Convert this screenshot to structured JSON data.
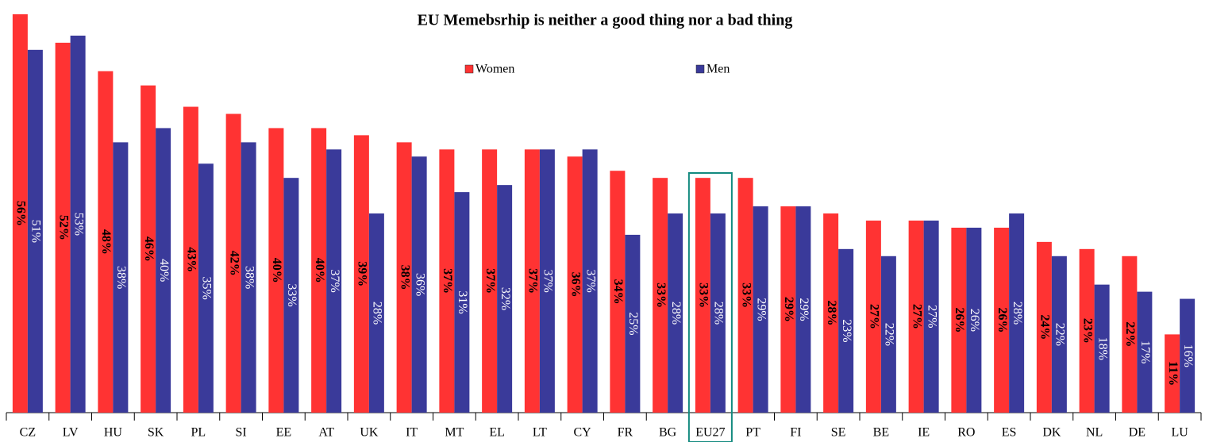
{
  "chart_data": {
    "type": "bar",
    "title": "EU Memebsrhip is neither a good thing nor a bad thing",
    "categories": [
      "CZ",
      "LV",
      "HU",
      "SK",
      "PL",
      "SI",
      "EE",
      "AT",
      "UK",
      "IT",
      "MT",
      "EL",
      "LT",
      "CY",
      "FR",
      "BG",
      "EU27",
      "PT",
      "FI",
      "SE",
      "BE",
      "IE",
      "RO",
      "ES",
      "DK",
      "NL",
      "DE",
      "LU"
    ],
    "series": [
      {
        "name": "Women",
        "color": "#ff3333",
        "values": [
          56,
          52,
          48,
          46,
          43,
          42,
          40,
          40,
          39,
          38,
          37,
          37,
          37,
          36,
          34,
          33,
          33,
          33,
          29,
          28,
          27,
          27,
          26,
          26,
          24,
          23,
          22,
          11
        ],
        "value_labels": [
          "56%",
          "52%",
          "48%",
          "46%",
          "43%",
          "42%",
          "40%",
          "40%",
          "39%",
          "38%",
          "37%",
          "37%",
          "37%",
          "36%",
          "34%",
          "33%",
          "33%",
          "33%",
          "29%",
          "28%",
          "27%",
          "27%",
          "26%",
          "26%",
          "24%",
          "23%",
          "22%",
          "11%"
        ]
      },
      {
        "name": "Men",
        "color": "#3a3a9a",
        "values": [
          51,
          53,
          38,
          40,
          35,
          38,
          33,
          37,
          28,
          36,
          31,
          32,
          37,
          37,
          25,
          28,
          28,
          29,
          29,
          23,
          22,
          27,
          26,
          28,
          22,
          18,
          17,
          16
        ],
        "value_labels": [
          "51%",
          "53%",
          "38%",
          "40%",
          "35%",
          "38%",
          "33%",
          "37%",
          "28%",
          "36%",
          "31%",
          "32%",
          "37%",
          "37%",
          "25%",
          "28%",
          "28%",
          "29%",
          "29%",
          "23%",
          "22%",
          "27%",
          "26%",
          "28%",
          "22%",
          "18%",
          "17%",
          "16%"
        ]
      }
    ],
    "highlight": "EU27",
    "legend": "top"
  }
}
